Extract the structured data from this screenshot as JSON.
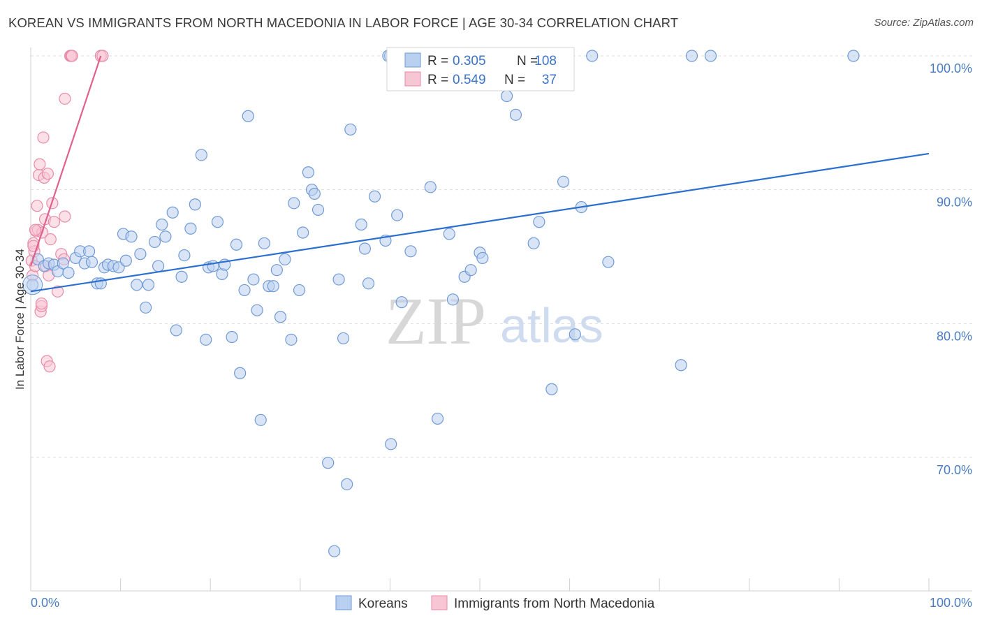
{
  "header": {
    "title": "KOREAN VS IMMIGRANTS FROM NORTH MACEDONIA IN LABOR FORCE | AGE 30-34 CORRELATION CHART",
    "source": "Source: ZipAtlas.com"
  },
  "watermark": {
    "zip": "ZIP",
    "atlas": "atlas"
  },
  "colors": {
    "blue_fill": "#b9d0f0",
    "blue_stroke": "#6f9ad6",
    "blue_line": "#2a6fcf",
    "pink_fill": "#f7c6d5",
    "pink_stroke": "#e88aa8",
    "pink_line": "#e0608d",
    "grid": "#dddddd",
    "tick_text": "#4a7cc0"
  },
  "stats": {
    "r_label": "R =",
    "n_label": "N =",
    "rows": [
      {
        "series": "Koreans",
        "r": "0.305",
        "n": "108"
      },
      {
        "series": "Immigrants from North Macedonia",
        "r": "0.549",
        "n": "37"
      }
    ]
  },
  "chart_data": {
    "type": "scatter",
    "title": "KOREAN VS IMMIGRANTS FROM NORTH MACEDONIA IN LABOR FORCE | AGE 30-34 CORRELATION CHART",
    "xlabel": "",
    "ylabel": "In Labor Force | Age 30-34",
    "xlim": [
      0,
      100
    ],
    "ylim": [
      61.5,
      101
    ],
    "x_tick_labels": [
      "0.0%",
      "100.0%"
    ],
    "y_ticks": [
      70,
      80,
      90,
      100
    ],
    "y_tick_labels": [
      "70.0%",
      "80.0%",
      "90.0%",
      "100.0%"
    ],
    "grid": true,
    "legend": [
      "Koreans",
      "Immigrants from North Macedonia"
    ],
    "series": [
      {
        "name": "Koreans",
        "color": "blue",
        "trend": {
          "x1": 0,
          "y1": 82.4,
          "x2": 100,
          "y2": 92.7
        },
        "points": [
          [
            0.2,
            82.9
          ],
          [
            0.8,
            84.8
          ],
          [
            1.5,
            84.3
          ],
          [
            2.0,
            84.5
          ],
          [
            2.6,
            84.4
          ],
          [
            3.0,
            83.9
          ],
          [
            3.6,
            84.5
          ],
          [
            4.2,
            83.8
          ],
          [
            5.0,
            84.9
          ],
          [
            5.5,
            85.4
          ],
          [
            6.0,
            84.5
          ],
          [
            6.5,
            85.4
          ],
          [
            6.8,
            84.6
          ],
          [
            7.4,
            83.0
          ],
          [
            7.8,
            83.0
          ],
          [
            8.2,
            84.2
          ],
          [
            8.6,
            84.4
          ],
          [
            9.2,
            84.3
          ],
          [
            9.8,
            84.2
          ],
          [
            10.3,
            86.7
          ],
          [
            10.6,
            84.7
          ],
          [
            11.2,
            86.5
          ],
          [
            11.8,
            82.9
          ],
          [
            12.2,
            85.2
          ],
          [
            12.8,
            81.2
          ],
          [
            13.1,
            82.9
          ],
          [
            13.8,
            86.1
          ],
          [
            14.2,
            84.3
          ],
          [
            14.6,
            87.4
          ],
          [
            15.0,
            86.5
          ],
          [
            15.8,
            88.3
          ],
          [
            16.2,
            79.5
          ],
          [
            16.8,
            83.5
          ],
          [
            17.1,
            85.1
          ],
          [
            17.8,
            87.1
          ],
          [
            18.3,
            88.9
          ],
          [
            19.0,
            92.6
          ],
          [
            19.5,
            78.8
          ],
          [
            19.8,
            84.2
          ],
          [
            20.3,
            84.3
          ],
          [
            20.8,
            87.6
          ],
          [
            21.3,
            83.7
          ],
          [
            21.6,
            84.4
          ],
          [
            22.4,
            79.0
          ],
          [
            22.9,
            85.9
          ],
          [
            23.3,
            76.3
          ],
          [
            23.8,
            82.5
          ],
          [
            24.2,
            95.5
          ],
          [
            24.8,
            83.3
          ],
          [
            25.2,
            81.0
          ],
          [
            25.6,
            72.8
          ],
          [
            26.0,
            86.0
          ],
          [
            26.5,
            82.8
          ],
          [
            27.0,
            82.8
          ],
          [
            27.4,
            84.0
          ],
          [
            27.8,
            80.5
          ],
          [
            28.3,
            84.8
          ],
          [
            29.0,
            78.8
          ],
          [
            29.3,
            89.0
          ],
          [
            29.9,
            82.5
          ],
          [
            30.3,
            86.8
          ],
          [
            30.9,
            91.3
          ],
          [
            31.3,
            90.0
          ],
          [
            31.6,
            89.7
          ],
          [
            32.0,
            88.5
          ],
          [
            33.1,
            69.6
          ],
          [
            33.8,
            63.0
          ],
          [
            34.3,
            83.3
          ],
          [
            34.8,
            78.9
          ],
          [
            35.2,
            68.0
          ],
          [
            35.6,
            94.5
          ],
          [
            36.8,
            87.4
          ],
          [
            37.2,
            85.6
          ],
          [
            37.6,
            83.0
          ],
          [
            38.3,
            89.5
          ],
          [
            39.5,
            86.2
          ],
          [
            40.1,
            71.0
          ],
          [
            40.8,
            88.1
          ],
          [
            41.3,
            81.6
          ],
          [
            42.3,
            85.4
          ],
          [
            44.5,
            90.2
          ],
          [
            45.3,
            72.9
          ],
          [
            46.6,
            86.7
          ],
          [
            47.0,
            81.8
          ],
          [
            48.3,
            83.5
          ],
          [
            49.0,
            84.0
          ],
          [
            50.0,
            85.3
          ],
          [
            50.3,
            84.9
          ],
          [
            51.0,
            98.0
          ],
          [
            52.0,
            100.0
          ],
          [
            53.0,
            97.0
          ],
          [
            54.0,
            95.6
          ],
          [
            56.0,
            86.0
          ],
          [
            56.6,
            87.6
          ],
          [
            58.0,
            75.1
          ],
          [
            59.3,
            90.6
          ],
          [
            60.6,
            79.2
          ],
          [
            61.3,
            88.7
          ],
          [
            62.5,
            100.0
          ],
          [
            64.3,
            84.6
          ],
          [
            72.4,
            76.9
          ],
          [
            73.6,
            100.0
          ],
          [
            75.7,
            100.0
          ],
          [
            91.6,
            100.0
          ],
          [
            40.0,
            100.0
          ],
          [
            53.7,
            100.0
          ],
          [
            39.8,
            100.0
          ],
          [
            51.6,
            98.0
          ]
        ]
      },
      {
        "name": "Immigrants from North Macedonia",
        "color": "pink",
        "trend": {
          "x1": 0,
          "y1": 84.3,
          "x2": 7.8,
          "y2": 100.0
        },
        "points": [
          [
            0.1,
            84.7
          ],
          [
            0.2,
            83.6
          ],
          [
            0.3,
            86.0
          ],
          [
            0.4,
            85.4
          ],
          [
            0.5,
            84.3
          ],
          [
            0.6,
            86.9
          ],
          [
            0.7,
            88.8
          ],
          [
            0.8,
            87.0
          ],
          [
            0.9,
            91.1
          ],
          [
            1.0,
            91.9
          ],
          [
            1.1,
            80.9
          ],
          [
            1.2,
            81.3
          ],
          [
            1.3,
            86.8
          ],
          [
            1.4,
            93.9
          ],
          [
            1.5,
            90.9
          ],
          [
            1.6,
            87.8
          ],
          [
            1.7,
            84.3
          ],
          [
            1.8,
            77.2
          ],
          [
            1.9,
            91.2
          ],
          [
            2.0,
            83.6
          ],
          [
            2.1,
            76.8
          ],
          [
            2.2,
            86.3
          ],
          [
            2.4,
            89.0
          ],
          [
            2.6,
            87.6
          ],
          [
            3.0,
            82.4
          ],
          [
            3.4,
            85.2
          ],
          [
            3.7,
            84.8
          ],
          [
            3.8,
            88.0
          ],
          [
            3.8,
            96.8
          ],
          [
            4.4,
            100.0
          ],
          [
            4.5,
            100.0
          ],
          [
            4.6,
            100.0
          ],
          [
            7.8,
            100.0
          ],
          [
            8.0,
            100.0
          ],
          [
            0.5,
            87.0
          ],
          [
            1.2,
            81.5
          ],
          [
            0.3,
            85.8
          ]
        ]
      }
    ]
  },
  "legend": {
    "items": [
      {
        "label": "Koreans"
      },
      {
        "label": "Immigrants from North Macedonia"
      }
    ]
  }
}
